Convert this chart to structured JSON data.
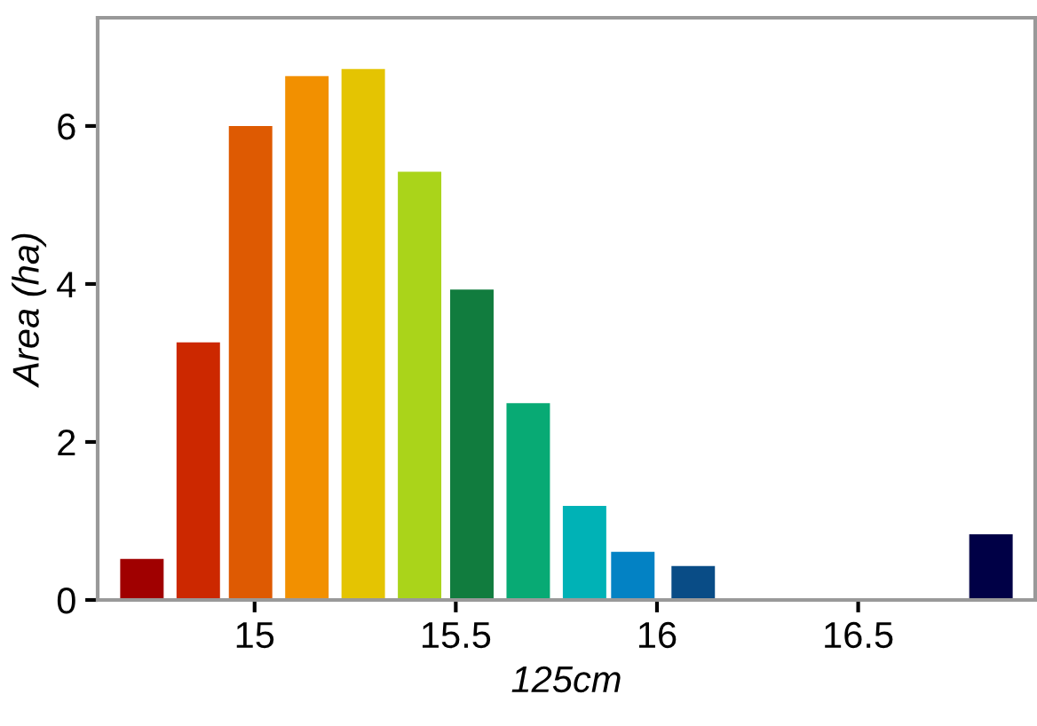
{
  "chart_data": {
    "type": "bar",
    "x": [
      14.72,
      14.86,
      14.99,
      15.13,
      15.27,
      15.41,
      15.54,
      15.68,
      15.82,
      15.94,
      16.09,
      16.83
    ],
    "values": [
      0.52,
      3.26,
      6.0,
      6.63,
      6.72,
      5.42,
      3.93,
      2.49,
      1.19,
      0.61,
      0.43,
      0.83
    ],
    "colors": [
      "#a00000",
      "#cc2800",
      "#de5a02",
      "#f29000",
      "#e4c402",
      "#aad41a",
      "#117c3e",
      "#08aa74",
      "#00b2b6",
      "#0382c4",
      "#094c86",
      "#000046"
    ],
    "xlabel": "125cm",
    "ylabel": "Area (ha)",
    "xlim": [
      14.61,
      16.94
    ],
    "ylim": [
      0,
      7.37
    ],
    "xticks": [
      15,
      15.5,
      16,
      16.5
    ],
    "yticks": [
      0,
      2,
      4,
      6
    ],
    "grid": false
  }
}
